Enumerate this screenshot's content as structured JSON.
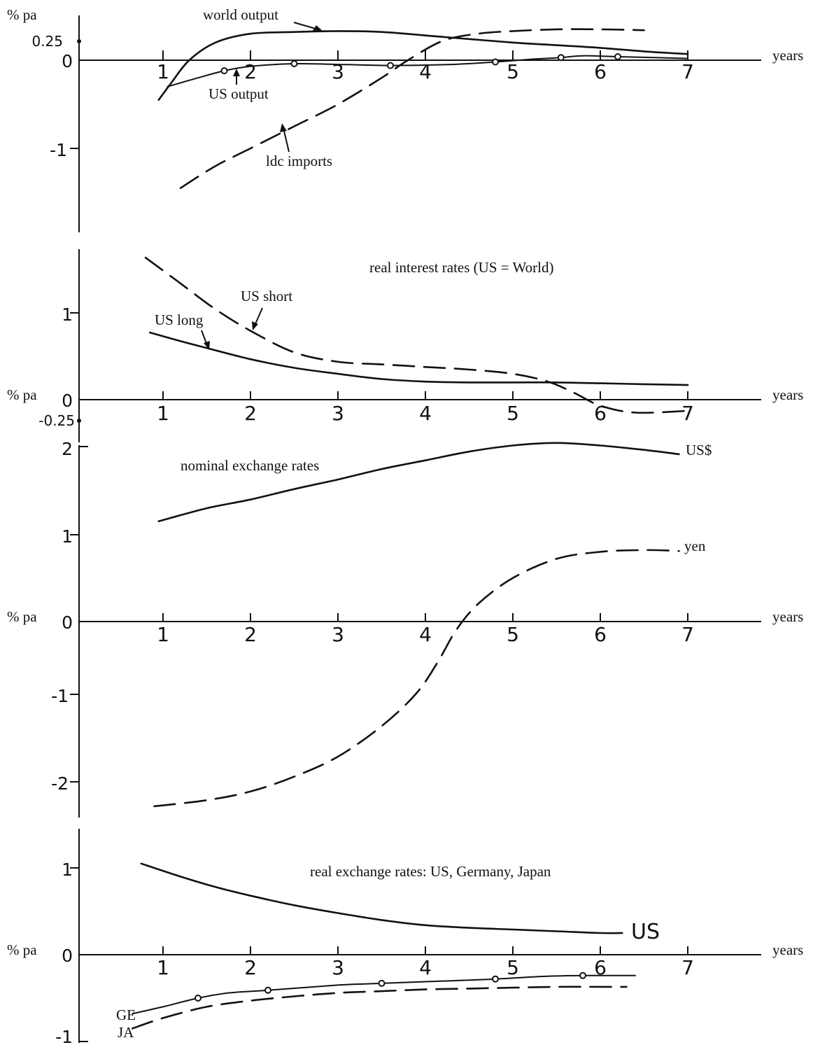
{
  "chart_data": [
    {
      "type": "line",
      "panel": "outputs",
      "ylabel": "% pa",
      "xlabel": "years",
      "xlim": [
        0,
        7.8
      ],
      "ylim": [
        -1.95,
        0.5
      ],
      "x_ticks": [
        "1",
        "2",
        "3",
        "4",
        "5",
        "6",
        "7"
      ],
      "y_ticks": [
        {
          "value": 0.25,
          "label": "0.25",
          "dot": true
        },
        {
          "value": 0,
          "label": "0"
        },
        {
          "value": -1,
          "label": "-1"
        }
      ],
      "series": [
        {
          "name": "world output",
          "style": "solid",
          "color": "#111111",
          "x": [
            0.95,
            1.1,
            1.3,
            1.6,
            2.0,
            2.5,
            3.0,
            3.5,
            4.0,
            4.5,
            5.0,
            5.5,
            6.0,
            6.5,
            7.0
          ],
          "y": [
            -0.45,
            -0.25,
            0.0,
            0.2,
            0.3,
            0.32,
            0.33,
            0.32,
            0.28,
            0.24,
            0.2,
            0.17,
            0.14,
            0.1,
            0.07
          ]
        },
        {
          "name": "US output",
          "style": "solid-circles",
          "color": "#111111",
          "x": [
            1.05,
            1.4,
            1.7,
            2.0,
            2.5,
            3.1,
            3.6,
            4.25,
            4.8,
            5.2,
            5.55,
            5.8,
            6.2,
            7.0
          ],
          "y": [
            -0.3,
            -0.2,
            -0.12,
            -0.07,
            -0.04,
            -0.05,
            -0.06,
            -0.05,
            -0.02,
            0.01,
            0.03,
            0.05,
            0.04,
            0.02
          ]
        },
        {
          "name": "ldc imports",
          "style": "dashed",
          "color": "#111111",
          "x": [
            1.2,
            1.6,
            2.0,
            2.5,
            3.0,
            3.5,
            3.8,
            4.2,
            4.6,
            5.0,
            5.5,
            6.0,
            6.5
          ],
          "y": [
            -1.45,
            -1.2,
            -1.0,
            -0.75,
            -0.5,
            -0.2,
            0.0,
            0.22,
            0.3,
            0.33,
            0.35,
            0.35,
            0.34
          ]
        }
      ],
      "annotations": [
        "world output",
        "US output",
        "ldc imports"
      ]
    },
    {
      "type": "line",
      "panel": "interest",
      "title": "real interest rates (US = World)",
      "ylabel": "% pa",
      "xlabel": "years",
      "xlim": [
        0,
        7.8
      ],
      "ylim": [
        -0.25,
        1.75
      ],
      "x_ticks": [
        "1",
        "2",
        "3",
        "4",
        "5",
        "6",
        "7"
      ],
      "y_ticks": [
        {
          "value": 1,
          "label": "1"
        },
        {
          "value": 0,
          "label": "0"
        },
        {
          "value": -0.25,
          "label": "-0.25",
          "dot": true
        }
      ],
      "series": [
        {
          "name": "US long",
          "style": "solid",
          "color": "#111111",
          "x": [
            0.85,
            1.2,
            1.5,
            2.0,
            2.5,
            3.0,
            3.5,
            4.0,
            4.5,
            5.0,
            5.5,
            6.0,
            6.5,
            7.0
          ],
          "y": [
            0.78,
            0.68,
            0.6,
            0.47,
            0.37,
            0.3,
            0.24,
            0.21,
            0.2,
            0.2,
            0.2,
            0.19,
            0.18,
            0.17
          ]
        },
        {
          "name": "US short",
          "style": "dashed",
          "color": "#111111",
          "x": [
            0.8,
            1.2,
            1.6,
            2.0,
            2.5,
            3.0,
            3.5,
            4.0,
            4.5,
            5.0,
            5.4,
            5.7,
            6.0,
            6.4,
            7.0
          ],
          "y": [
            1.65,
            1.35,
            1.05,
            0.8,
            0.55,
            0.44,
            0.41,
            0.38,
            0.35,
            0.3,
            0.21,
            0.08,
            -0.07,
            -0.15,
            -0.13
          ]
        }
      ],
      "annotations": [
        "US long",
        "US short"
      ]
    },
    {
      "type": "line",
      "panel": "nominal-fx",
      "title": "nominal exchange rates",
      "ylabel": "% pa",
      "xlabel": "years",
      "xlim": [
        0,
        7.8
      ],
      "ylim": [
        -2.4,
        2.1
      ],
      "x_ticks": [
        "1",
        "2",
        "3",
        "4",
        "5",
        "6",
        "7"
      ],
      "y_ticks": [
        {
          "value": 2,
          "label": "2"
        },
        {
          "value": 1,
          "label": "1"
        },
        {
          "value": 0,
          "label": "0"
        },
        {
          "value": -1,
          "label": "-1"
        },
        {
          "value": -2,
          "label": "-2"
        }
      ],
      "series": [
        {
          "name": "US$",
          "style": "solid",
          "color": "#111111",
          "x": [
            0.95,
            1.5,
            2.0,
            2.5,
            3.0,
            3.5,
            4.0,
            4.5,
            5.0,
            5.5,
            6.0,
            6.5,
            6.9
          ],
          "y": [
            1.15,
            1.3,
            1.4,
            1.52,
            1.63,
            1.75,
            1.85,
            1.95,
            2.02,
            2.05,
            2.02,
            1.97,
            1.92
          ]
        },
        {
          "name": "yen",
          "style": "dashed",
          "color": "#111111",
          "x": [
            0.9,
            1.5,
            2.0,
            2.5,
            3.0,
            3.5,
            3.9,
            4.15,
            4.35,
            4.6,
            5.0,
            5.5,
            6.0,
            6.5,
            6.9
          ],
          "y": [
            -2.12,
            -2.05,
            -1.95,
            -1.78,
            -1.55,
            -1.2,
            -0.82,
            -0.45,
            -0.1,
            0.2,
            0.5,
            0.72,
            0.8,
            0.82,
            0.81
          ]
        }
      ],
      "annotations": [
        "US$",
        "yen"
      ]
    },
    {
      "type": "line",
      "panel": "real-fx",
      "title": "real exchange rates: US, Germany, Japan",
      "ylabel": "% pa",
      "xlabel": "years",
      "xlim": [
        0,
        7.8
      ],
      "ylim": [
        -1.05,
        1.45
      ],
      "x_ticks": [
        "1",
        "2",
        "3",
        "4",
        "5",
        "6",
        "7"
      ],
      "y_ticks": [
        {
          "value": 1,
          "label": "1"
        },
        {
          "value": 0,
          "label": "0"
        },
        {
          "value": -1,
          "label": "-1"
        }
      ],
      "series": [
        {
          "name": "US",
          "style": "solid",
          "color": "#111111",
          "x": [
            0.75,
            1.2,
            1.6,
            2.0,
            2.5,
            3.0,
            3.5,
            4.0,
            4.5,
            5.0,
            5.5,
            6.0,
            6.25
          ],
          "y": [
            1.05,
            0.9,
            0.78,
            0.68,
            0.57,
            0.48,
            0.4,
            0.34,
            0.31,
            0.29,
            0.27,
            0.25,
            0.25
          ]
        },
        {
          "name": "GE",
          "style": "solid-circles",
          "color": "#111111",
          "x": [
            0.65,
            1.0,
            1.4,
            1.75,
            2.2,
            3.0,
            3.5,
            4.3,
            4.8,
            5.35,
            5.8,
            6.4
          ],
          "y": [
            -0.68,
            -0.6,
            -0.5,
            -0.44,
            -0.41,
            -0.35,
            -0.33,
            -0.3,
            -0.28,
            -0.25,
            -0.24,
            -0.24
          ]
        },
        {
          "name": "JA",
          "style": "dashed",
          "color": "#111111",
          "x": [
            0.65,
            1.0,
            1.5,
            2.0,
            2.5,
            3.0,
            3.5,
            4.0,
            4.5,
            5.0,
            5.5,
            6.0,
            6.3
          ],
          "y": [
            -0.85,
            -0.73,
            -0.6,
            -0.53,
            -0.48,
            -0.44,
            -0.42,
            -0.4,
            -0.39,
            -0.38,
            -0.37,
            -0.37,
            -0.37
          ]
        }
      ],
      "annotations": [
        "US",
        "GE",
        "JA"
      ]
    }
  ]
}
